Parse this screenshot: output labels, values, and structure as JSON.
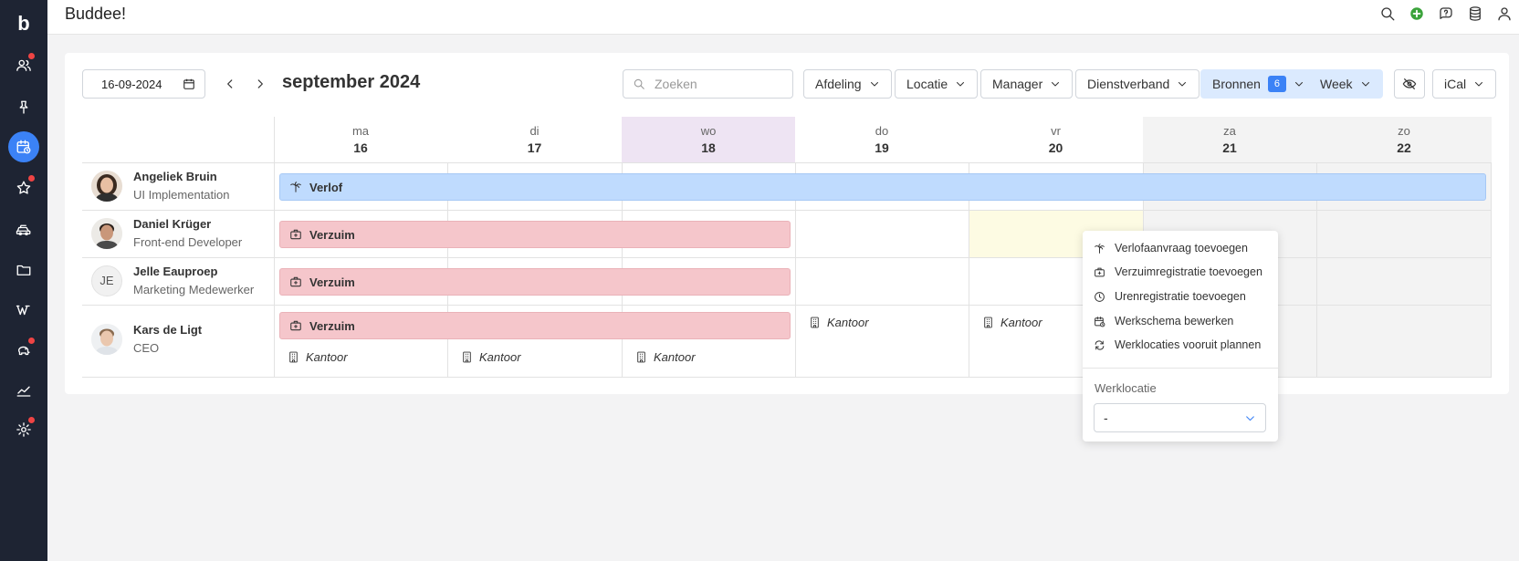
{
  "app": {
    "title": "Buddee!"
  },
  "sidebar": {
    "logo": "b",
    "items": [
      {
        "icon": "users-icon",
        "dot": true
      },
      {
        "icon": "pin-icon",
        "dot": false
      },
      {
        "icon": "calendar-icon",
        "active": true
      },
      {
        "icon": "star-icon",
        "dot": true
      },
      {
        "icon": "car-icon",
        "dot": false
      },
      {
        "icon": "folder-icon",
        "dot": false
      },
      {
        "icon": "wiki-icon",
        "dot": false
      },
      {
        "icon": "piggy-bank-icon",
        "dot": true
      },
      {
        "icon": "chart-icon",
        "dot": false
      },
      {
        "icon": "gear-icon",
        "dot": true
      }
    ]
  },
  "topbar": {
    "icons": [
      "search-icon",
      "add-icon",
      "help-icon",
      "database-icon",
      "user-icon"
    ]
  },
  "toolbar": {
    "date_value": "16-09-2024",
    "month_title": "september 2024",
    "search_placeholder": "Zoeken",
    "filters": {
      "afdeling": "Afdeling",
      "locatie": "Locatie",
      "manager": "Manager",
      "dienstverband": "Dienstverband",
      "bronnen": "Bronnen",
      "bronnen_count": "6",
      "week": "Week",
      "ical": "iCal"
    }
  },
  "days": [
    {
      "name": "ma",
      "num": "16"
    },
    {
      "name": "di",
      "num": "17"
    },
    {
      "name": "wo",
      "num": "18"
    },
    {
      "name": "do",
      "num": "19"
    },
    {
      "name": "vr",
      "num": "20"
    },
    {
      "name": "za",
      "num": "21"
    },
    {
      "name": "zo",
      "num": "22"
    }
  ],
  "people": [
    {
      "name": "Angeliek Bruin",
      "role": "UI Implementation"
    },
    {
      "name": "Daniel Krüger",
      "role": "Front-end Developer"
    },
    {
      "name": "Jelle Eauproep",
      "role": "Marketing Medewerker",
      "initials": "JE"
    },
    {
      "name": "Kars de Ligt",
      "role": "CEO"
    }
  ],
  "events": {
    "verlof": "Verlof",
    "verzuim": "Verzuim",
    "kantoor": "Kantoor"
  },
  "colors": {
    "sidebar": "#1e2433",
    "accent": "#3b82f6",
    "verlof": "#bfdbfe",
    "verzuim": "#f5c6cb",
    "today": "#eee4f3"
  },
  "context_menu": {
    "items": [
      {
        "label": "Verlofaanvraag toevoegen",
        "icon": "palm-tree-icon"
      },
      {
        "label": "Verzuimregistratie toevoegen",
        "icon": "medical-bag-icon"
      },
      {
        "label": "Urenregistratie toevoegen",
        "icon": "clock-icon"
      },
      {
        "label": "Werkschema bewerken",
        "icon": "calendar-clock-icon"
      },
      {
        "label": "Werklocaties vooruit plannen",
        "icon": "repeat-icon"
      }
    ],
    "location_label": "Werklocatie",
    "location_value": "-"
  }
}
